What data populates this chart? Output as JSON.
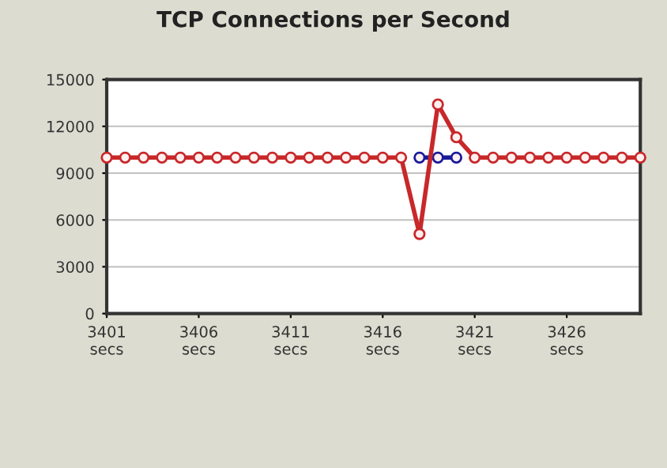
{
  "chart_data": {
    "type": "line",
    "title": "TCP Connections per Second",
    "categories": [
      "3401\nsecs",
      null,
      null,
      null,
      null,
      "3406\nsecs",
      null,
      null,
      null,
      null,
      "3411\nsecs",
      null,
      null,
      null,
      null,
      "3416\nsecs",
      null,
      null,
      null,
      null,
      "3421\nsecs",
      null,
      null,
      null,
      null,
      "3426\nsecs",
      null,
      null,
      null,
      null
    ],
    "series": [
      {
        "color": "#1a1a9a",
        "values": [
          null,
          null,
          null,
          null,
          null,
          null,
          null,
          null,
          null,
          null,
          null,
          null,
          null,
          null,
          null,
          null,
          null,
          10000,
          10000,
          10000,
          null,
          null,
          null,
          null,
          null,
          null,
          null,
          null,
          null,
          null
        ]
      },
      {
        "color": "#c8282a",
        "values": [
          10000,
          10000,
          10000,
          10000,
          10000,
          10000,
          10000,
          10000,
          10000,
          10000,
          10000,
          10000,
          10000,
          10000,
          10000,
          10000,
          10000,
          5100,
          13400,
          11300,
          10000,
          10000,
          10000,
          10000,
          10000,
          10000,
          10000,
          10000,
          10000,
          10000
        ]
      }
    ],
    "ylim": [
      0,
      15000
    ],
    "yticks": [
      0,
      3000,
      6000,
      9000,
      12000,
      15000
    ],
    "grid": "y",
    "marker": "circle",
    "line_style": "solid"
  }
}
